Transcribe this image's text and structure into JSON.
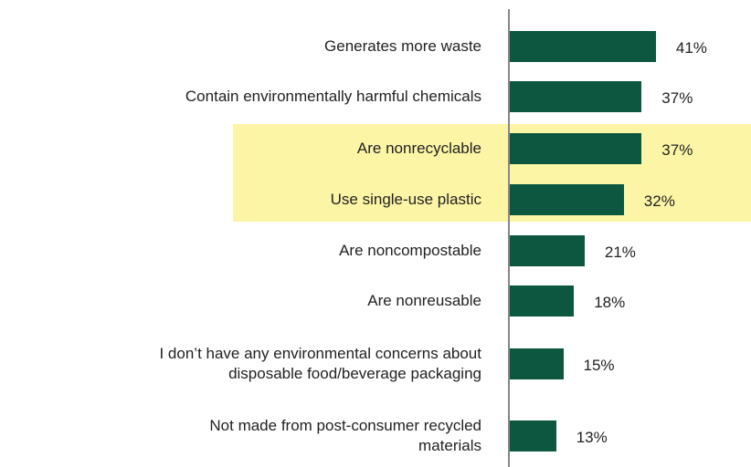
{
  "chart_data": {
    "type": "bar",
    "orientation": "horizontal",
    "categories": [
      "Generates more waste",
      "Contain environmentally harmful chemicals",
      "Are nonrecyclable",
      "Use single-use plastic",
      "Are noncompostable",
      "Are nonreusable",
      "I don’t have any environmental concerns about\ndisposable food/beverage packaging",
      "Not made from post-consumer recycled\nmaterials"
    ],
    "values": [
      41,
      37,
      37,
      32,
      21,
      18,
      15,
      13
    ],
    "value_labels": [
      "41%",
      "37%",
      "37%",
      "32%",
      "21%",
      "18%",
      "15%",
      "13%"
    ],
    "color": "#0d5740",
    "highlighted": [
      2,
      3
    ],
    "highlight_color": "#fcf5a6"
  }
}
